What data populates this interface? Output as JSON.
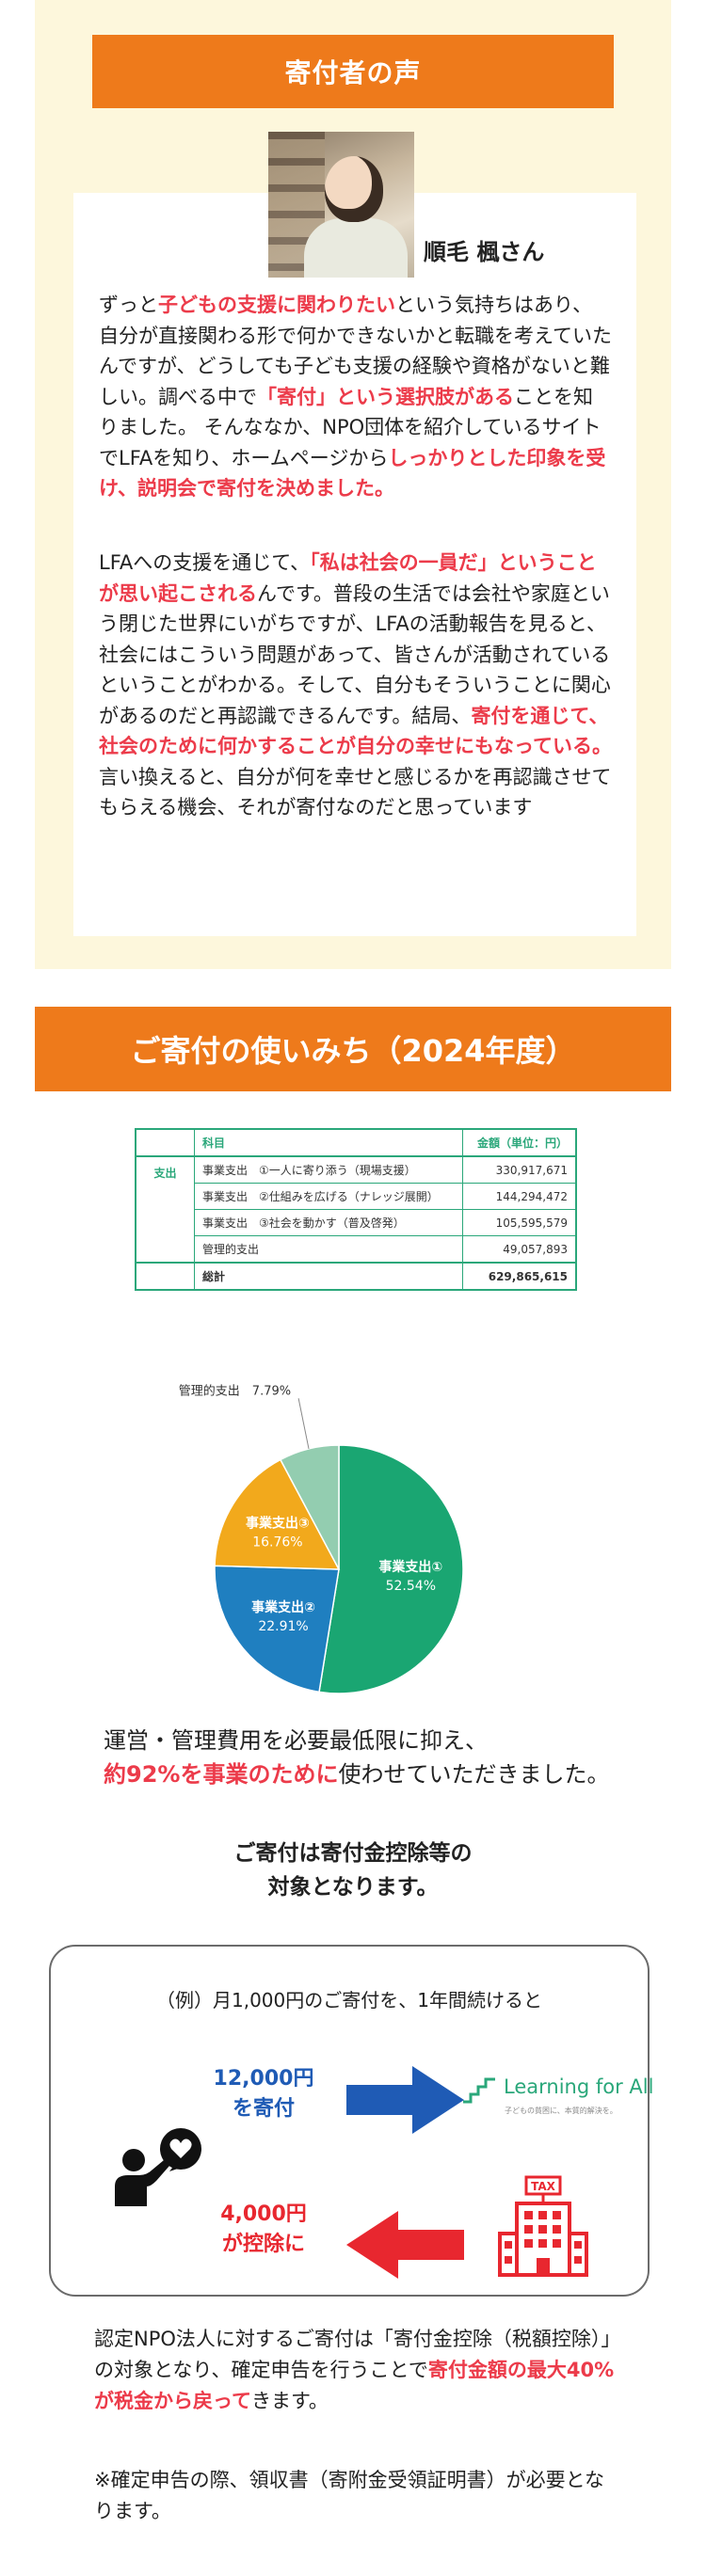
{
  "voice": {
    "header": "寄付者の声",
    "donor_name": "順毛 楓さん",
    "para1": [
      {
        "t": "ずっと"
      },
      {
        "t": "子どもの支援に関わりたい",
        "hl": true
      },
      {
        "t": "という気持ちはあり、自分が直接関わる形で何かできないかと転職を考えていたんですが、どうしても子ども支援の経験や資格がないと難しい。調べる中で"
      },
      {
        "t": "「寄付」という選択肢がある",
        "hl": true
      },
      {
        "t": "ことを知りました。 そんななか、NPO団体を紹介しているサイトでLFAを知り、ホームページから"
      },
      {
        "t": "しっかりとした印象を受け、説明会で寄付を決めました。",
        "hl": true
      }
    ],
    "para2": [
      {
        "t": "LFAへの支援を通じて、"
      },
      {
        "t": "「私は社会の一員だ」ということが思い起こされる",
        "hl": true
      },
      {
        "t": "んです。普段の生活では会社や家庭という閉じた世界にいがちですが、LFAの活動報告を見ると、社会にはこういう問題があって、皆さんが活動されているということがわかる。そして、自分もそういうことに関心があるのだと再認識できるんです。結局、"
      },
      {
        "t": "寄付を通じて、社会のために何かすることが自分の幸せにもなっている。",
        "hl": true
      },
      {
        "t": "言い換えると、自分が何を幸せと感じるかを再認識させてもらえる機会、それが寄付なのだと思っています"
      }
    ]
  },
  "usage": {
    "header": "ご寄付の使いみち（2024年度）",
    "table": {
      "col_item": "科目",
      "col_amount": "金額（単位：円）",
      "category": "支出",
      "rows": [
        {
          "item": "事業支出　①一人に寄り添う（現場支援）",
          "amount": "330,917,671"
        },
        {
          "item": "事業支出　②仕組みを広げる（ナレッジ展開）",
          "amount": "144,294,472"
        },
        {
          "item": "事業支出　③社会を動かす（普及啓発）",
          "amount": "105,595,579"
        },
        {
          "item": "管理的支出",
          "amount": "49,057,893"
        }
      ],
      "total_label": "総計",
      "total_amount": "629,865,615"
    }
  },
  "chart_data": {
    "type": "pie",
    "slices": [
      {
        "label": "事業支出①",
        "value": 52.54,
        "pct": "52.54%",
        "color": "#1aa672"
      },
      {
        "label": "事業支出②",
        "value": 22.91,
        "pct": "22.91%",
        "color": "#1f7fc0"
      },
      {
        "label": "事業支出③",
        "value": 16.76,
        "pct": "16.76%",
        "color": "#f2a91c"
      },
      {
        "label": "管理的支出",
        "value": 7.79,
        "pct": "7.79%",
        "color": "#93cdb0"
      }
    ],
    "title": ""
  },
  "message": {
    "line1": "運営・管理費用を必要最低限に抑え、",
    "line2_hl": "約92%を事業のために",
    "line2_rest": "使わせていただきました。"
  },
  "deduction": {
    "title1": "ご寄付は寄付金控除等の",
    "title2": "対象となります。",
    "example": "（例）月1,000円のご寄付を、1年間続けると",
    "donate1": "12,000円",
    "donate2": "を寄付",
    "deduct1": "4,000円",
    "deduct2": "が控除に",
    "logo_name": "Learning for All",
    "logo_tag": "子どもの貧困に、本質的解決を。",
    "tax_label": "TAX"
  },
  "notes": {
    "note1_a": "認定NPO法人に対するご寄付は「寄付金控除（税額控除）」の対象となり、確定申告を行うことで",
    "note1_hl": "寄付金額の最大40%が税金から戻って",
    "note1_b": "きます。",
    "note2": "※確定申告の際、領収書（寄附金受領証明書）が必要となります。"
  }
}
